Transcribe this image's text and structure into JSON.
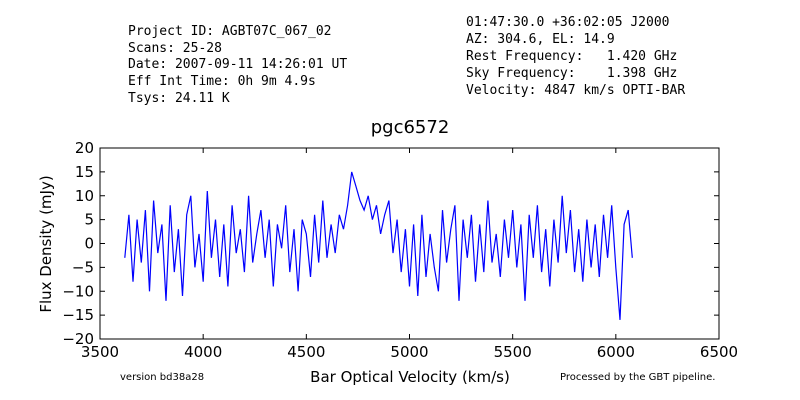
{
  "header_left": [
    "Project ID: AGBT07C_067_02",
    "Scans: 25-28",
    "Date: 2007-09-11 14:26:01 UT",
    "Eff Int Time: 0h 9m 4.9s",
    "Tsys: 24.11 K"
  ],
  "header_right": [
    "01:47:30.0 +36:02:05 J2000",
    "AZ: 304.6, EL: 14.9",
    "Rest Frequency:   1.420 GHz",
    "Sky Frequency:    1.398 GHz",
    "Velocity: 4847 km/s OPTI-BAR"
  ],
  "footer": {
    "version": "version bd38a28",
    "pipeline": "Processed by the GBT pipeline."
  },
  "colors": {
    "line": "#0000ff",
    "pipeline_text": "#ff4444",
    "version_text": "#444444"
  },
  "chart_data": {
    "type": "line",
    "title": "pgc6572",
    "xlabel": "Bar Optical Velocity (km/s)",
    "ylabel": "Flux Density (mJy)",
    "xlim": [
      3500,
      6500
    ],
    "ylim": [
      -20,
      20
    ],
    "xticks": [
      "3500",
      "4000",
      "4500",
      "5000",
      "5500",
      "6000",
      "6500"
    ],
    "yticks": [
      "20",
      "15",
      "10",
      "5",
      "0",
      "−5",
      "−10",
      "−15",
      "−20"
    ],
    "grid": false,
    "series": [
      {
        "x": [
          3620,
          3640,
          3660,
          3680,
          3700,
          3720,
          3740,
          3760,
          3780,
          3800,
          3820,
          3840,
          3860,
          3880,
          3900,
          3920,
          3940,
          3960,
          3980,
          4000,
          4020,
          4040,
          4060,
          4080,
          4100,
          4120,
          4140,
          4160,
          4180,
          4200,
          4220,
          4240,
          4260,
          4280,
          4300,
          4320,
          4340,
          4360,
          4380,
          4400,
          4420,
          4440,
          4460,
          4480,
          4500,
          4520,
          4540,
          4560,
          4580,
          4600,
          4620,
          4640,
          4660,
          4680,
          4700,
          4720,
          4740,
          4760,
          4780,
          4800,
          4820,
          4840,
          4860,
          4880,
          4900,
          4920,
          4940,
          4960,
          4980,
          5000,
          5020,
          5040,
          5060,
          5080,
          5100,
          5120,
          5140,
          5160,
          5180,
          5200,
          5220,
          5240,
          5260,
          5280,
          5300,
          5320,
          5340,
          5360,
          5380,
          5400,
          5420,
          5440,
          5460,
          5480,
          5500,
          5520,
          5540,
          5560,
          5580,
          5600,
          5620,
          5640,
          5660,
          5680,
          5700,
          5720,
          5740,
          5760,
          5780,
          5800,
          5820,
          5840,
          5860,
          5880,
          5900,
          5920,
          5940,
          5960,
          5980,
          6000,
          6020,
          6040,
          6060,
          6080
        ],
        "y": [
          -3,
          6,
          -8,
          5,
          -4,
          7,
          -10,
          9,
          -2,
          4,
          -12,
          8,
          -6,
          3,
          -11,
          6,
          10,
          -5,
          2,
          -8,
          11,
          -3,
          5,
          -7,
          4,
          -9,
          8,
          -2,
          3,
          -6,
          10,
          -4,
          2,
          7,
          -3,
          5,
          -9,
          4,
          -1,
          8,
          -6,
          3,
          -10,
          5,
          2,
          -7,
          6,
          -4,
          9,
          -3,
          4,
          -2,
          6,
          3,
          8,
          15,
          12,
          9,
          7,
          10,
          5,
          8,
          2,
          6,
          9,
          -2,
          5,
          -6,
          3,
          -9,
          4,
          -11,
          6,
          -7,
          2,
          -5,
          -10,
          7,
          -4,
          3,
          8,
          -12,
          5,
          -3,
          6,
          -8,
          4,
          -6,
          9,
          -4,
          2,
          -7,
          5,
          -3,
          7,
          -5,
          4,
          -12,
          6,
          -3,
          8,
          -6,
          3,
          -9,
          5,
          -4,
          10,
          -2,
          7,
          -6,
          3,
          -8,
          5,
          -5,
          4,
          -7,
          6,
          -3,
          8,
          -5,
          -16,
          4,
          7,
          -3
        ]
      }
    ]
  }
}
